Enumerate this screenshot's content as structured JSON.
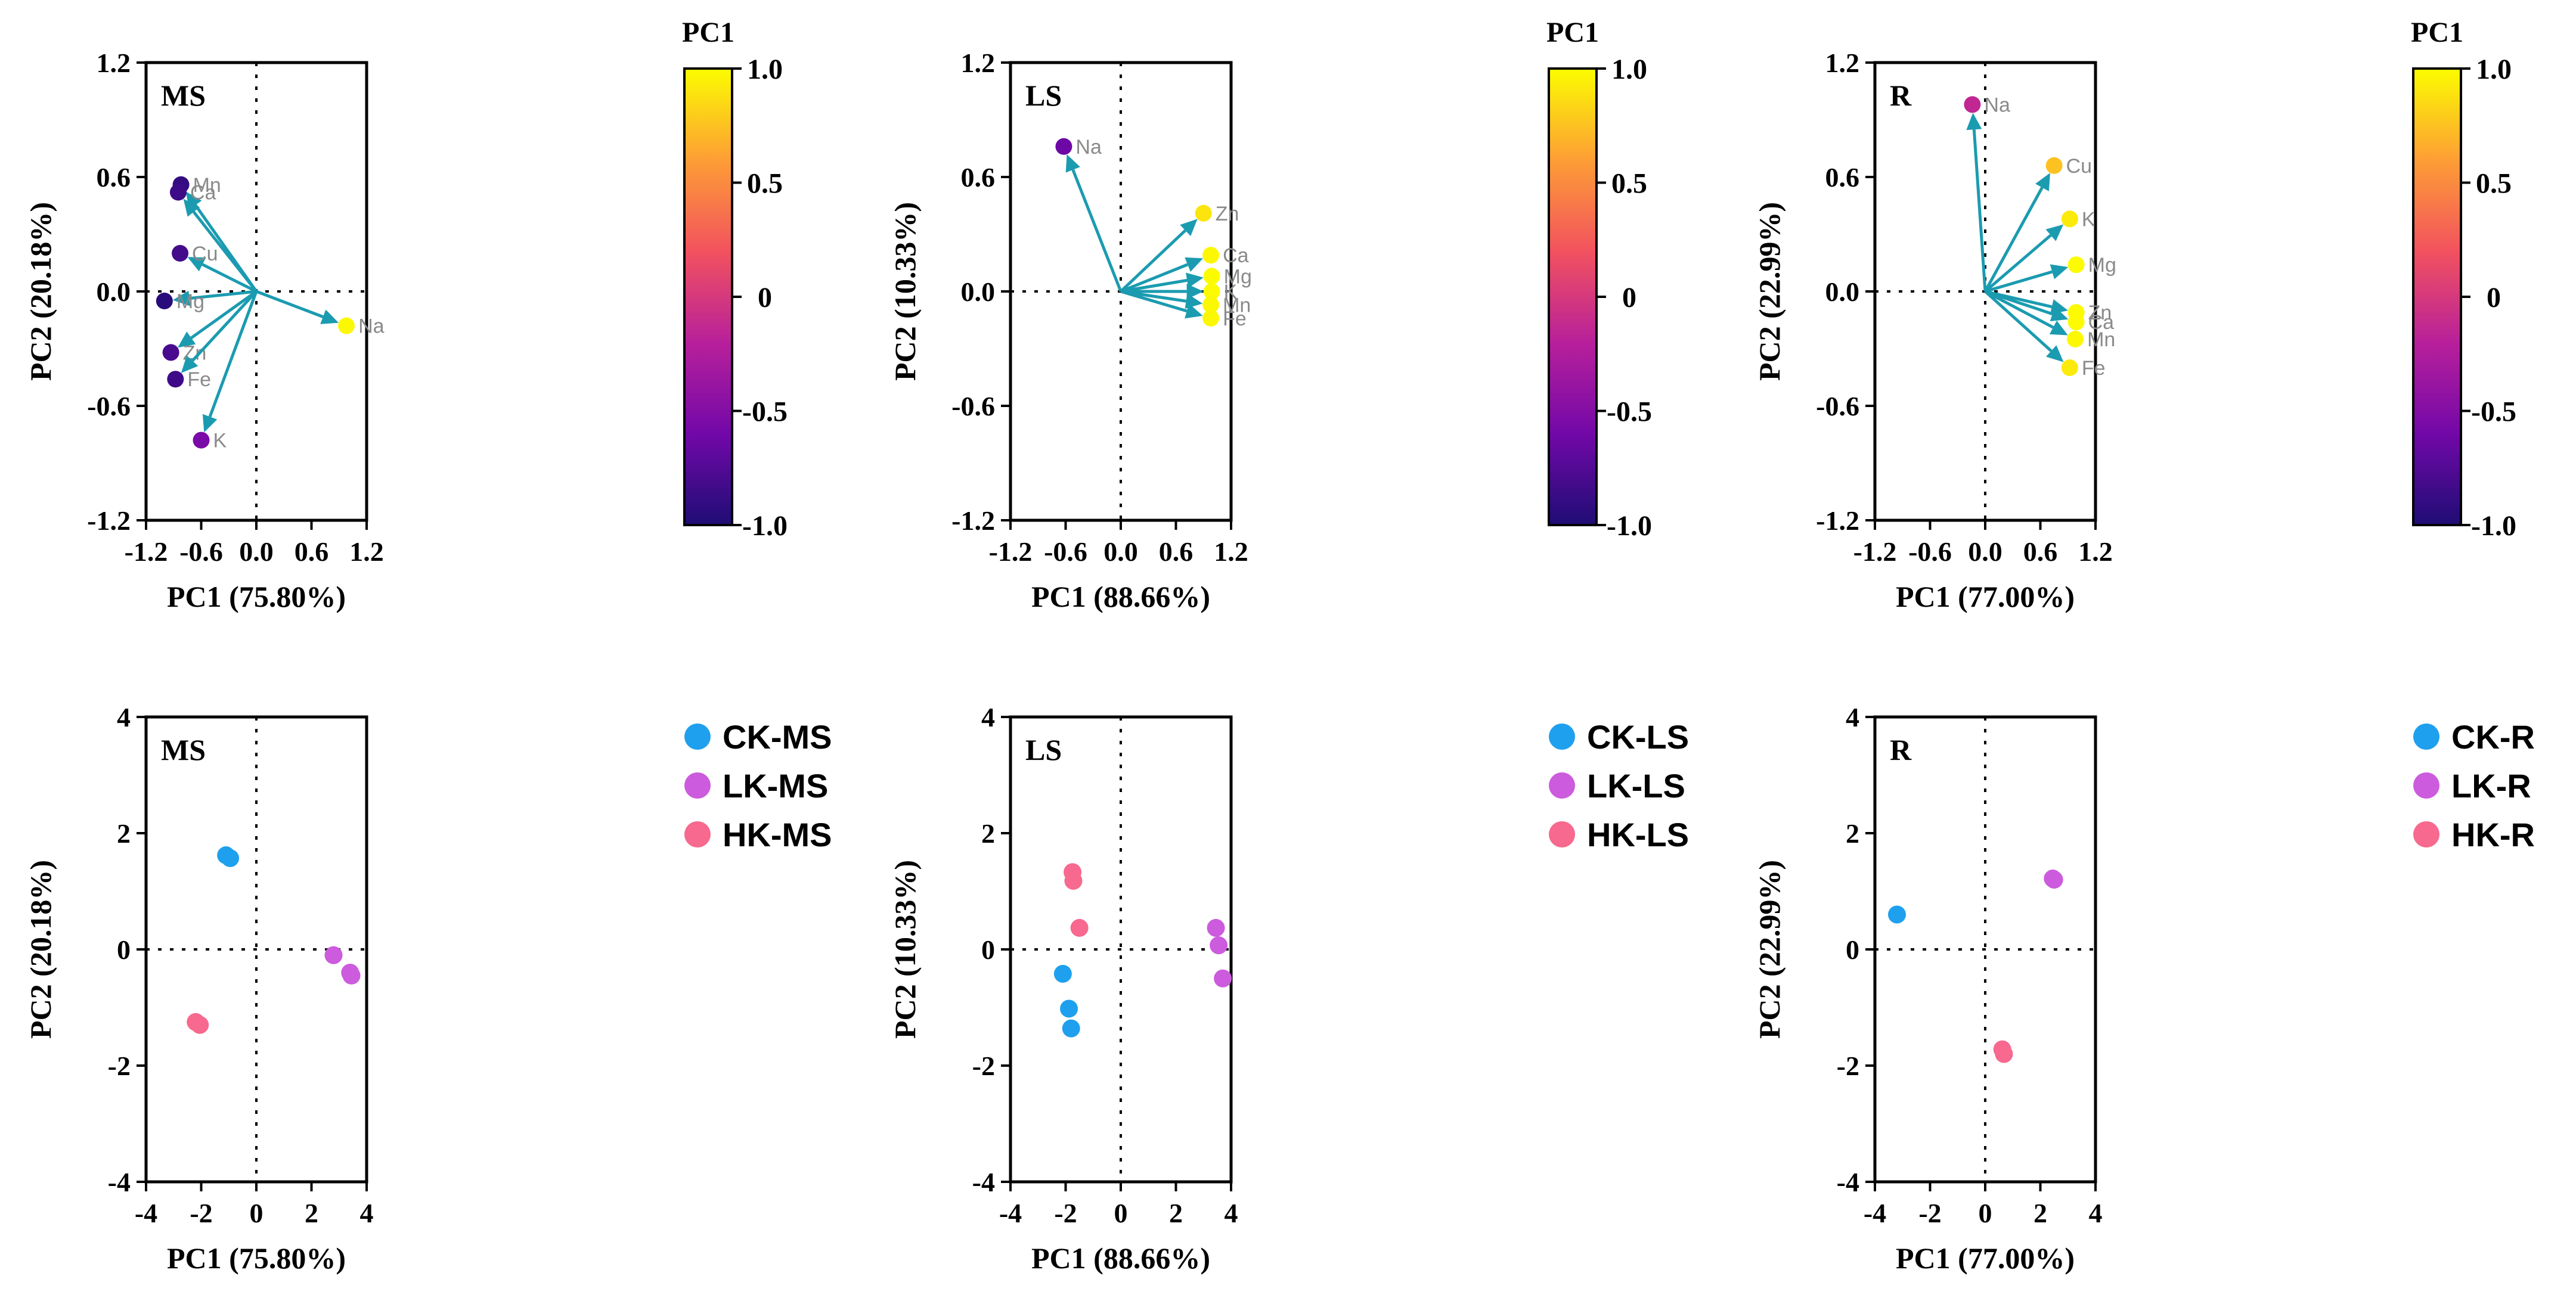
{
  "palette": {
    "arrow": "#1b9bb0",
    "CK": "#1fa0ee",
    "LK": "#cc5bdd",
    "HK": "#f7698e",
    "colormap": [
      "#fcfd00",
      "#fd9e35",
      "#f2525e",
      "#b8209b",
      "#7208a8",
      "#1e0d74"
    ]
  },
  "colorbar": {
    "title": "PC1",
    "ticks": [
      "1.0",
      "0.5",
      "0",
      "-0.5",
      "-1.0"
    ]
  },
  "chart_data": [
    {
      "type": "biplot",
      "panel": "MS",
      "xlabel": "PC1 (75.80%)",
      "ylabel": "PC2 (20.18%)",
      "xlim": [
        -1.2,
        1.2
      ],
      "ylim": [
        -1.2,
        1.2
      ],
      "xticks": [
        "-1.2",
        "-0.6",
        "0.0",
        "0.6",
        "1.2"
      ],
      "yticks": [
        "1.2",
        "0.6",
        "0.0",
        "-0.6",
        "-1.2"
      ],
      "loadings": [
        {
          "name": "Mn",
          "x": -0.82,
          "y": 0.56,
          "pc1": -0.9
        },
        {
          "name": "Ca",
          "x": -0.85,
          "y": 0.52,
          "pc1": -0.85
        },
        {
          "name": "Cu",
          "x": -0.83,
          "y": 0.2,
          "pc1": -0.82
        },
        {
          "name": "Mg",
          "x": -1.0,
          "y": -0.05,
          "pc1": -0.95
        },
        {
          "name": "Zn",
          "x": -0.93,
          "y": -0.32,
          "pc1": -0.8
        },
        {
          "name": "Fe",
          "x": -0.88,
          "y": -0.46,
          "pc1": -0.85
        },
        {
          "name": "K",
          "x": -0.6,
          "y": -0.78,
          "pc1": -0.55
        },
        {
          "name": "Na",
          "x": 0.98,
          "y": -0.18,
          "pc1": 0.98
        }
      ]
    },
    {
      "type": "biplot",
      "panel": "LS",
      "xlabel": "PC1 (88.66%)",
      "ylabel": "PC2 (10.33%)",
      "xlim": [
        -1.2,
        1.2
      ],
      "ylim": [
        -1.2,
        1.2
      ],
      "xticks": [
        "-1.2",
        "-0.6",
        "0.0",
        "0.6",
        "1.2"
      ],
      "yticks": [
        "1.2",
        "0.6",
        "0.0",
        "-0.6",
        "-1.2"
      ],
      "loadings": [
        {
          "name": "Na",
          "x": -0.62,
          "y": 0.76,
          "pc1": -0.62
        },
        {
          "name": "Zn",
          "x": 0.9,
          "y": 0.41,
          "pc1": 0.9
        },
        {
          "name": "Ca",
          "x": 0.98,
          "y": 0.19,
          "pc1": 0.98
        },
        {
          "name": "Mg",
          "x": 0.99,
          "y": 0.08,
          "pc1": 0.99
        },
        {
          "name": "K",
          "x": 0.99,
          "y": 0.0,
          "pc1": 0.99
        },
        {
          "name": "Mn",
          "x": 0.98,
          "y": -0.07,
          "pc1": 0.98
        },
        {
          "name": "Fe",
          "x": 0.98,
          "y": -0.14,
          "pc1": 0.98
        }
      ]
    },
    {
      "type": "biplot",
      "panel": "R",
      "xlabel": "PC1 (77.00%)",
      "ylabel": "PC2 (22.99%)",
      "xlim": [
        -1.2,
        1.2
      ],
      "ylim": [
        -1.2,
        1.2
      ],
      "xticks": [
        "-1.2",
        "-0.6",
        "0.0",
        "0.6",
        "1.2"
      ],
      "yticks": [
        "1.2",
        "0.6",
        "0.0",
        "-0.6",
        "-1.2"
      ],
      "loadings": [
        {
          "name": "Na",
          "x": -0.14,
          "y": 0.98,
          "pc1": -0.14
        },
        {
          "name": "Cu",
          "x": 0.75,
          "y": 0.66,
          "pc1": 0.75
        },
        {
          "name": "K",
          "x": 0.92,
          "y": 0.38,
          "pc1": 0.92
        },
        {
          "name": "Mg",
          "x": 0.99,
          "y": 0.14,
          "pc1": 0.99
        },
        {
          "name": "Zn",
          "x": 0.99,
          "y": -0.11,
          "pc1": 0.99
        },
        {
          "name": "Ca",
          "x": 0.99,
          "y": -0.16,
          "pc1": 0.99
        },
        {
          "name": "Mn",
          "x": 0.98,
          "y": -0.25,
          "pc1": 0.98
        },
        {
          "name": "Fe",
          "x": 0.92,
          "y": -0.4,
          "pc1": 0.92
        }
      ]
    },
    {
      "type": "scatter",
      "panel": "MS",
      "xlabel": "PC1 (75.80%)",
      "ylabel": "PC2 (20.18%)",
      "xlim": [
        -4,
        4
      ],
      "ylim": [
        -4,
        4
      ],
      "xticks": [
        "-4",
        "-2",
        "0",
        "2",
        "4"
      ],
      "yticks": [
        "4",
        "2",
        "0",
        "-2",
        "-4"
      ],
      "series": [
        {
          "name": "CK-MS",
          "group": "CK",
          "points": [
            [
              -1.1,
              1.62
            ],
            [
              -0.95,
              1.57
            ]
          ]
        },
        {
          "name": "LK-MS",
          "group": "LK",
          "points": [
            [
              2.8,
              -0.1
            ],
            [
              3.4,
              -0.4
            ],
            [
              3.45,
              -0.45
            ]
          ]
        },
        {
          "name": "HK-MS",
          "group": "HK",
          "points": [
            [
              -2.2,
              -1.25
            ],
            [
              -2.05,
              -1.3
            ]
          ]
        }
      ]
    },
    {
      "type": "scatter",
      "panel": "LS",
      "xlabel": "PC1 (88.66%)",
      "ylabel": "PC2 (10.33%)",
      "xlim": [
        -4,
        4
      ],
      "ylim": [
        -4,
        4
      ],
      "xticks": [
        "-4",
        "-2",
        "0",
        "2",
        "4"
      ],
      "yticks": [
        "4",
        "2",
        "0",
        "-2",
        "-4"
      ],
      "series": [
        {
          "name": "CK-LS",
          "group": "CK",
          "points": [
            [
              -2.1,
              -0.42
            ],
            [
              -1.88,
              -1.02
            ],
            [
              -1.8,
              -1.36
            ]
          ]
        },
        {
          "name": "LK-LS",
          "group": "LK",
          "points": [
            [
              3.45,
              0.37
            ],
            [
              3.55,
              0.07
            ],
            [
              3.7,
              -0.5
            ]
          ]
        },
        {
          "name": "HK-LS",
          "group": "HK",
          "points": [
            [
              -1.75,
              1.33
            ],
            [
              -1.72,
              1.18
            ],
            [
              -1.5,
              0.37
            ]
          ]
        }
      ]
    },
    {
      "type": "scatter",
      "panel": "R",
      "xlabel": "PC1 (77.00%)",
      "ylabel": "PC2 (22.99%)",
      "xlim": [
        -4,
        4
      ],
      "ylim": [
        -4,
        4
      ],
      "xticks": [
        "-4",
        "-2",
        "0",
        "2",
        "4"
      ],
      "yticks": [
        "4",
        "2",
        "0",
        "-2",
        "-4"
      ],
      "series": [
        {
          "name": "CK-R",
          "group": "CK",
          "points": [
            [
              -3.2,
              0.6
            ]
          ]
        },
        {
          "name": "LK-R",
          "group": "LK",
          "points": [
            [
              2.45,
              1.22
            ],
            [
              2.5,
              1.2
            ]
          ]
        },
        {
          "name": "HK-R",
          "group": "HK",
          "points": [
            [
              0.62,
              -1.72
            ],
            [
              0.68,
              -1.8
            ]
          ]
        }
      ]
    }
  ]
}
